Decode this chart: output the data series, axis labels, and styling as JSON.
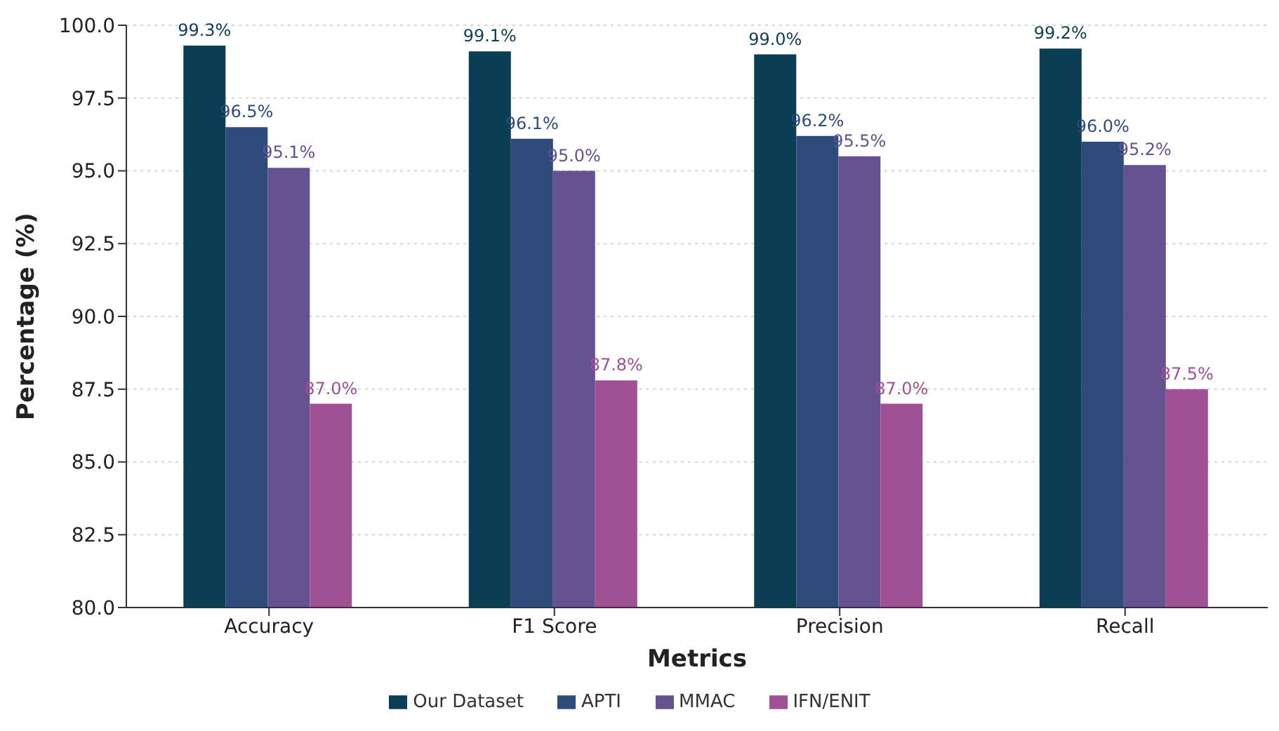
{
  "chart_data": {
    "type": "bar",
    "xlabel": "Metrics",
    "ylabel": "Percentage (%)",
    "categories": [
      "Accuracy",
      "F1 Score",
      "Precision",
      "Recall"
    ],
    "series": [
      {
        "name": "Our Dataset",
        "color": "#0b3d55",
        "values": [
          99.3,
          99.1,
          99.0,
          99.2
        ],
        "value_labels": [
          "99.3%",
          "99.1%",
          "99.0%",
          "99.2%"
        ]
      },
      {
        "name": "APTI",
        "color": "#2f4b7c",
        "values": [
          96.5,
          96.1,
          96.2,
          96.0
        ],
        "value_labels": [
          "96.5%",
          "96.1%",
          "96.2%",
          "96.0%"
        ]
      },
      {
        "name": "MMAC",
        "color": "#665191",
        "values": [
          95.1,
          95.0,
          95.5,
          95.2
        ],
        "value_labels": [
          "95.1%",
          "95.0%",
          "95.5%",
          "95.2%"
        ]
      },
      {
        "name": "IFN/ENIT",
        "color": "#a05195",
        "values": [
          87.0,
          87.8,
          87.0,
          87.5
        ],
        "value_labels": [
          "87.0%",
          "87.8%",
          "87.0%",
          "87.5%"
        ]
      }
    ],
    "ylim": [
      80,
      100
    ],
    "yticks": [
      {
        "value": 80,
        "label": "80.0"
      },
      {
        "value": 82.5,
        "label": "82.5"
      },
      {
        "value": 85,
        "label": "85.0"
      },
      {
        "value": 87.5,
        "label": "87.5"
      },
      {
        "value": 90,
        "label": "90.0"
      },
      {
        "value": 92.5,
        "label": "92.5"
      },
      {
        "value": 95,
        "label": "95.0"
      },
      {
        "value": 97.5,
        "label": "97.5"
      },
      {
        "value": 100,
        "label": "100.0"
      }
    ],
    "grid": "y",
    "legend": "bottom"
  }
}
